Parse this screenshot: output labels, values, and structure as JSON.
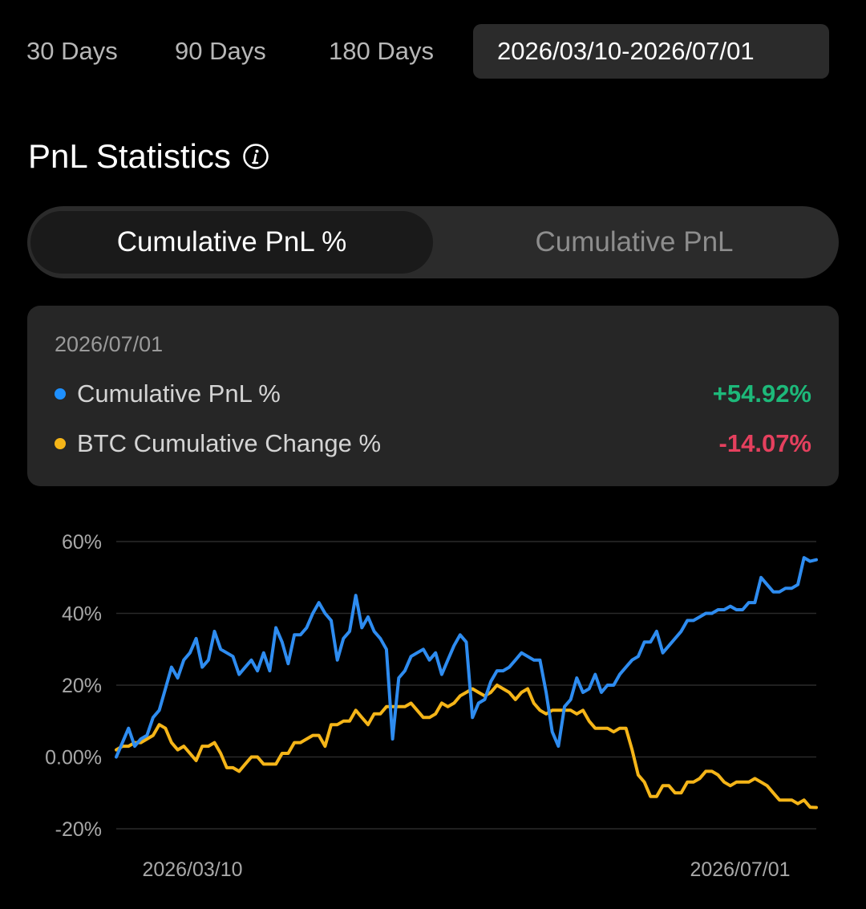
{
  "range": {
    "items": [
      "30 Days",
      "90 Days",
      "180 Days"
    ],
    "custom": "2026/03/10-2026/07/01"
  },
  "title": "PnL Statistics",
  "tabs": [
    "Cumulative PnL %",
    "Cumulative PnL"
  ],
  "tooltip": {
    "date": "2026/07/01",
    "rows": [
      {
        "label": "Cumulative PnL %",
        "value": "+54.92%",
        "dot": "#1e90ff",
        "color": "#1db97a"
      },
      {
        "label": "BTC Cumulative Change %",
        "value": "-14.07%",
        "dot": "#f5b518",
        "color": "#e5405e"
      }
    ]
  },
  "colors": {
    "pnl": "#2e8cf0",
    "btc": "#f5b518",
    "grid": "#2a2a2a",
    "tick": "#a8a8a8"
  },
  "chart_data": {
    "type": "line",
    "x_start": "2026/03/10",
    "x_end": "2026/07/01",
    "x_tick_labels": [
      "2026/03/10",
      "2026/07/01"
    ],
    "y_ticks": [
      60,
      40,
      20,
      0,
      -20
    ],
    "y_tick_labels": [
      "60%",
      "40%",
      "20%",
      "0.00%",
      "-20%"
    ],
    "ylim": [
      -20,
      60
    ],
    "series": [
      {
        "name": "Cumulative PnL %",
        "color": "#2e8cf0",
        "values": [
          0,
          4,
          8,
          3,
          5,
          6,
          11,
          13,
          19,
          25,
          22,
          27,
          29,
          33,
          25,
          27,
          35,
          30,
          29,
          28,
          23,
          25,
          27,
          24,
          29,
          24,
          36,
          32,
          26,
          34,
          34,
          36,
          40,
          43,
          40,
          38,
          27,
          33,
          35,
          45,
          36,
          39,
          35,
          33,
          30,
          5,
          22,
          24,
          28,
          29,
          30,
          27,
          29,
          23,
          27,
          31,
          34,
          32,
          11,
          15,
          16,
          21,
          24,
          24,
          25,
          27,
          29,
          28,
          27,
          27,
          18,
          7,
          3,
          14,
          16,
          22,
          18,
          19,
          23,
          18,
          20,
          20,
          23,
          25,
          27,
          28,
          32,
          32,
          35,
          29,
          31,
          33,
          35,
          38,
          38,
          39,
          40,
          40,
          41,
          41,
          42,
          41,
          41,
          43,
          43,
          50,
          48,
          46,
          46,
          47,
          47,
          48,
          55.5,
          54.5,
          54.92
        ]
      },
      {
        "name": "BTC Cumulative Change %",
        "color": "#f5b518",
        "values": [
          2,
          3,
          3,
          4,
          4,
          5,
          6,
          9,
          8,
          4,
          2,
          3,
          1,
          -1,
          3,
          3,
          4,
          1,
          -3,
          -3,
          -4,
          -2,
          0,
          0,
          -2,
          -2,
          -2,
          1,
          1,
          4,
          4,
          5,
          6,
          6,
          3,
          9,
          9,
          10,
          10,
          13,
          11,
          9,
          12,
          12,
          14,
          14,
          14,
          14,
          15,
          13,
          11,
          11,
          12,
          15,
          14,
          15,
          17,
          18,
          19,
          18,
          17,
          18,
          20,
          19,
          18,
          16,
          18,
          19,
          15,
          13,
          12,
          13,
          13,
          13,
          13,
          12,
          13,
          10,
          8,
          8,
          8,
          7,
          8,
          8,
          2,
          -5,
          -7,
          -11,
          -11,
          -8,
          -8,
          -10,
          -10,
          -7,
          -7,
          -6,
          -4,
          -4,
          -5,
          -7,
          -8,
          -7,
          -7,
          -7,
          -6,
          -7,
          -8,
          -10,
          -12,
          -12,
          -12,
          -13,
          -12,
          -14,
          -14.07
        ]
      }
    ]
  }
}
